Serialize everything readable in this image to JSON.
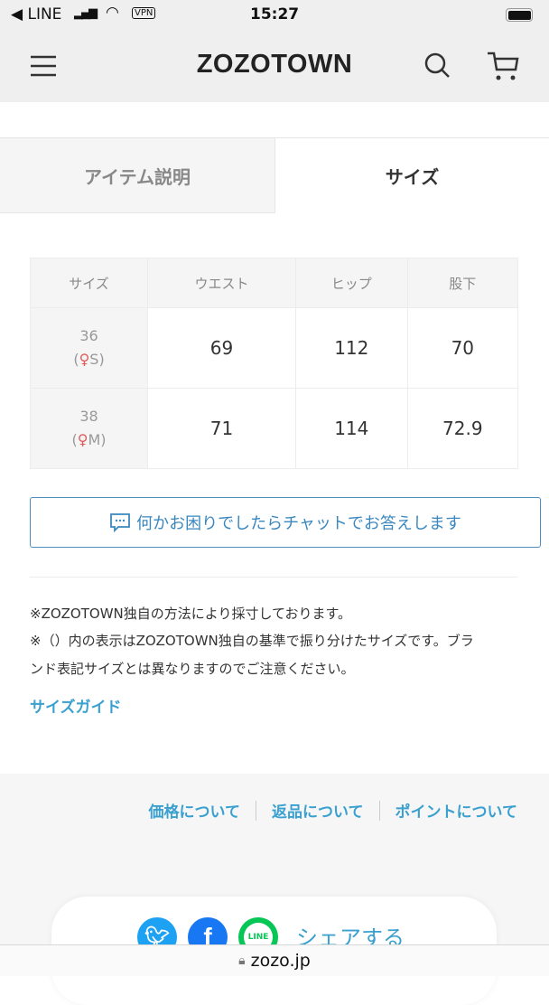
{
  "status_bar": {
    "back_app": "LINE",
    "vpn": "VPN",
    "time": "15:27"
  },
  "header": {
    "logo": "ZOZOTOWN"
  },
  "tabs": [
    {
      "label": "アイテム説明",
      "active": false
    },
    {
      "label": "サイズ",
      "active": true
    }
  ],
  "size_table": {
    "headers": [
      "サイズ",
      "ウエスト",
      "ヒップ",
      "股下"
    ],
    "rows": [
      {
        "size": "36",
        "zozo_size": "S",
        "values": [
          "69",
          "112",
          "70"
        ]
      },
      {
        "size": "38",
        "zozo_size": "M",
        "values": [
          "71",
          "114",
          "72.9"
        ]
      }
    ]
  },
  "chat_button": {
    "label": "何かお困りでしたらチャットでお答えします",
    "icon": "chat-bubble-icon"
  },
  "notes": [
    "※ZOZOTOWN独自の方法により採寸しております。",
    "※（）内の表示はZOZOTOWN独自の基準で振り分けたサイズです。ブラ",
    "ンド表記サイズとは異なりますのでご注意ください。"
  ],
  "size_guide": "サイズガイド",
  "footer_links": [
    "価格について",
    "返品について",
    "ポイントについて"
  ],
  "share": {
    "label": "シェアする",
    "line_icon_text": "LINE"
  },
  "browser": {
    "url": "zozo.jp"
  },
  "colors": {
    "accent": "#3aa0cf",
    "chat": "#3a88bf",
    "women_icon": "#e05a5a",
    "twitter": "#1da1f2",
    "facebook": "#1877f2",
    "line": "#06c755"
  }
}
